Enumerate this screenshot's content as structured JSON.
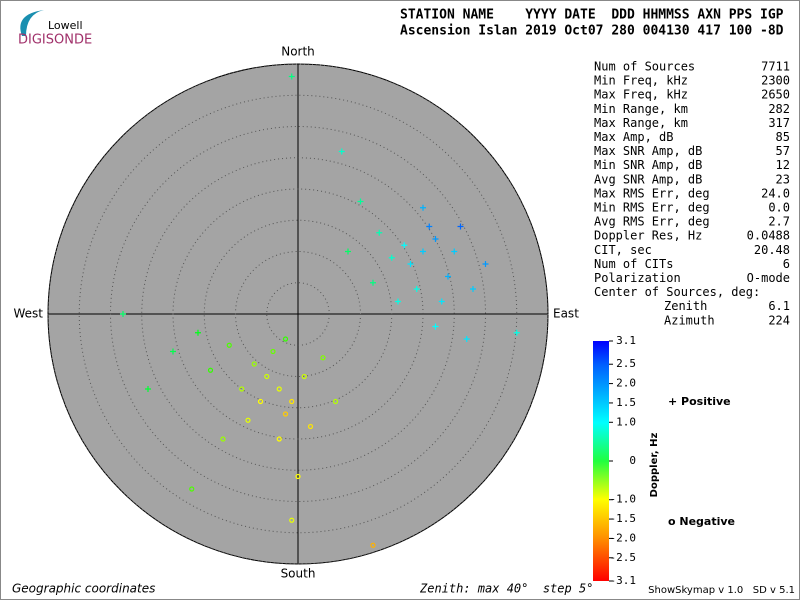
{
  "logo": {
    "top": "Lowell",
    "bottom": "DIGISONDE"
  },
  "header": {
    "line1": "STATION NAME    YYYY DATE  DDD HHMMSS AXN PPS IGP",
    "line2": "Ascension Islan 2019 Oct07 280 004130 417 100 -8D"
  },
  "stats": {
    "rows": [
      [
        "Num of Sources",
        "7711"
      ],
      [
        "Min Freq, kHz",
        "2300"
      ],
      [
        "Max Freq, kHz",
        "2650"
      ],
      [
        "Min Range, km",
        "282"
      ],
      [
        "Max Range, km",
        "317"
      ],
      [
        "Max Amp, dB",
        "85"
      ],
      [
        "Max SNR Amp, dB",
        "57"
      ],
      [
        "Min SNR Amp, dB",
        "12"
      ],
      [
        "Avg SNR Amp, dB",
        "23"
      ],
      [
        "Max RMS Err, deg",
        "24.0"
      ],
      [
        "Min RMS Err, deg",
        "0.0"
      ],
      [
        "Avg RMS Err, deg",
        "2.7"
      ],
      [
        "Doppler Res, Hz",
        "0.0488"
      ],
      [
        "CIT, sec",
        "20.48"
      ],
      [
        "Num of CITs",
        "6"
      ],
      [
        "Polarization",
        "O-mode"
      ]
    ],
    "center_title": "Center of Sources, deg:",
    "center_rows": [
      [
        "Zenith",
        "6.1"
      ],
      [
        "Azimuth",
        "224"
      ]
    ]
  },
  "chart_data": {
    "type": "skymap",
    "directions": {
      "north": "North",
      "south": "South",
      "west": "West",
      "east": "East"
    },
    "rlim": [
      0,
      40
    ],
    "rticks": [
      5,
      10,
      15,
      20,
      25,
      30,
      35,
      40
    ],
    "colorbar": {
      "label": "Doppler, Hz",
      "lim": [
        -3.1,
        3.1
      ],
      "ticks": [
        3.1,
        2.5,
        {
          "value": 2,
          "label": "2.0"
        },
        1.5,
        {
          "value": 1,
          "label": "1.0"
        },
        0,
        {
          "value": -1,
          "label": "-1.0"
        },
        -1.5,
        {
          "value": -2,
          "label": "-2.0"
        },
        -2.5,
        -3.1
      ]
    },
    "legend": {
      "positive": "Positive",
      "negative": "Negative",
      "positive_color": "#0000c0",
      "negative_color": "#cc0000"
    },
    "points": [
      {
        "x": 20,
        "y": 10,
        "d": 1.2
      },
      {
        "x": 22,
        "y": 12,
        "d": 1.4
      },
      {
        "x": 18,
        "y": 8,
        "d": 1.1
      },
      {
        "x": 24,
        "y": 6,
        "d": 1.3
      },
      {
        "x": 21,
        "y": 14,
        "d": 1.5
      },
      {
        "x": 17,
        "y": 11,
        "d": 1.0
      },
      {
        "x": 25,
        "y": 10,
        "d": 1.2
      },
      {
        "x": 19,
        "y": 4,
        "d": 0.9
      },
      {
        "x": 23,
        "y": 2,
        "d": 1.1
      },
      {
        "x": 15,
        "y": 9,
        "d": 0.8
      },
      {
        "x": 26,
        "y": 14,
        "d": 1.6
      },
      {
        "x": 20,
        "y": 17,
        "d": 1.3
      },
      {
        "x": 28,
        "y": 4,
        "d": 1.2
      },
      {
        "x": 13,
        "y": 13,
        "d": 0.7
      },
      {
        "x": 16,
        "y": 2,
        "d": 0.9
      },
      {
        "x": 22,
        "y": -2,
        "d": 1.0
      },
      {
        "x": 30,
        "y": 8,
        "d": 1.4
      },
      {
        "x": 10,
        "y": 18,
        "d": 0.6
      },
      {
        "x": 7,
        "y": 26,
        "d": 0.8
      },
      {
        "x": 27,
        "y": -4,
        "d": 1.1
      },
      {
        "x": 35,
        "y": -3,
        "d": 0.9
      },
      {
        "x": -1,
        "y": 38,
        "d": 0.5
      },
      {
        "x": 12,
        "y": 5,
        "d": 0.5
      },
      {
        "x": 8,
        "y": 10,
        "d": 0.4
      },
      {
        "x": -3,
        "y": -12,
        "d": -0.9
      },
      {
        "x": -5,
        "y": -10,
        "d": -0.8
      },
      {
        "x": -1,
        "y": -14,
        "d": -1.1
      },
      {
        "x": -7,
        "y": -8,
        "d": -0.6
      },
      {
        "x": -2,
        "y": -16,
        "d": -1.2
      },
      {
        "x": -9,
        "y": -12,
        "d": -0.7
      },
      {
        "x": 1,
        "y": -10,
        "d": -0.8
      },
      {
        "x": -4,
        "y": -6,
        "d": -0.4
      },
      {
        "x": -11,
        "y": -5,
        "d": -0.3
      },
      {
        "x": -6,
        "y": -14,
        "d": -1.0
      },
      {
        "x": 2,
        "y": -18,
        "d": -1.1
      },
      {
        "x": -8,
        "y": -17,
        "d": -0.9
      },
      {
        "x": 4,
        "y": -7,
        "d": -0.5
      },
      {
        "x": -14,
        "y": -9,
        "d": -0.2
      },
      {
        "x": -3,
        "y": -20,
        "d": -1.0
      },
      {
        "x": -16,
        "y": -3,
        "d": 0.1
      },
      {
        "x": -20,
        "y": -6,
        "d": 0.3
      },
      {
        "x": -12,
        "y": -20,
        "d": -0.6
      },
      {
        "x": 0,
        "y": -26,
        "d": -1.0
      },
      {
        "x": -1,
        "y": -33,
        "d": -0.9
      },
      {
        "x": 6,
        "y": -14,
        "d": -0.7
      },
      {
        "x": -24,
        "y": -12,
        "d": 0.2
      },
      {
        "x": -28,
        "y": 0,
        "d": 0.4
      },
      {
        "x": -17,
        "y": -28,
        "d": -0.3
      },
      {
        "x": 12,
        "y": -37,
        "d": -1.3
      },
      {
        "x": -2,
        "y": -4,
        "d": -0.2
      }
    ]
  },
  "footer": {
    "left": "Geographic coordinates",
    "middle": "Zenith: max 40°  step 5°",
    "right": "ShowSkymap v 1.0   SD v 5.1"
  }
}
